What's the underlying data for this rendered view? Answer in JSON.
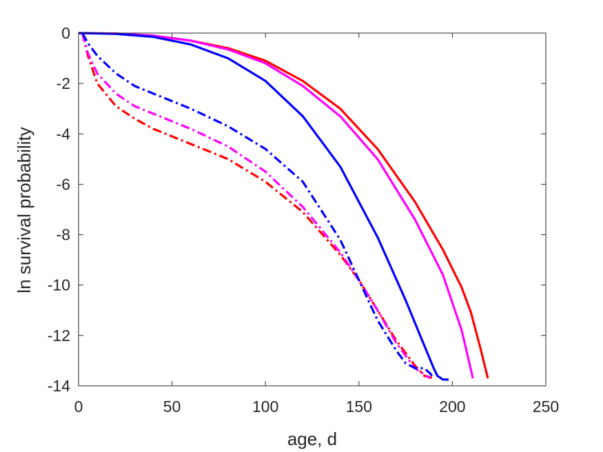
{
  "chart_data": {
    "type": "line",
    "title": "",
    "xlabel": "age, d",
    "ylabel": "ln survival probability",
    "xlim": [
      0,
      250
    ],
    "ylim": [
      -14,
      0
    ],
    "xticks": [
      0,
      50,
      100,
      150,
      200,
      250
    ],
    "yticks": [
      0,
      -2,
      -4,
      -6,
      -8,
      -10,
      -12,
      -14
    ],
    "grid": false,
    "legend": "none",
    "series": [
      {
        "color": "#ff0000",
        "style": "solid",
        "x": [
          0,
          20,
          40,
          60,
          80,
          100,
          120,
          140,
          160,
          180,
          195,
          205,
          210,
          215,
          219
        ],
        "y": [
          0,
          -0.02,
          -0.1,
          -0.3,
          -0.6,
          -1.1,
          -1.9,
          -3.0,
          -4.6,
          -6.7,
          -8.6,
          -10.1,
          -11.1,
          -12.5,
          -13.7
        ]
      },
      {
        "color": "#ff00ff",
        "style": "solid",
        "x": [
          0,
          20,
          40,
          60,
          80,
          100,
          120,
          140,
          160,
          180,
          195,
          205,
          211
        ],
        "y": [
          0,
          -0.02,
          -0.1,
          -0.3,
          -0.65,
          -1.2,
          -2.1,
          -3.3,
          -5.0,
          -7.4,
          -9.6,
          -11.8,
          -13.7
        ]
      },
      {
        "color": "#0000ff",
        "style": "solid",
        "x": [
          0,
          20,
          40,
          60,
          80,
          100,
          120,
          140,
          160,
          175,
          185,
          190,
          192,
          195,
          198
        ],
        "y": [
          0,
          -0.03,
          -0.15,
          -0.45,
          -1.0,
          -1.9,
          -3.3,
          -5.3,
          -8.1,
          -10.6,
          -12.4,
          -13.3,
          -13.6,
          -13.75,
          -13.75
        ]
      },
      {
        "color": "#ff0000",
        "style": "dashdot",
        "x": [
          2,
          5,
          10,
          20,
          30,
          40,
          60,
          80,
          100,
          120,
          140,
          150,
          160,
          170,
          180,
          185,
          190
        ],
        "y": [
          0,
          -0.9,
          -2.0,
          -2.9,
          -3.4,
          -3.8,
          -4.4,
          -5.0,
          -5.9,
          -7.1,
          -8.8,
          -9.8,
          -11.0,
          -12.2,
          -13.2,
          -13.6,
          -13.7
        ]
      },
      {
        "color": "#ff00ff",
        "style": "dashdot",
        "x": [
          2,
          5,
          10,
          20,
          30,
          40,
          60,
          80,
          100,
          120,
          140,
          150,
          160,
          170,
          180,
          188
        ],
        "y": [
          0,
          -0.8,
          -1.6,
          -2.4,
          -2.9,
          -3.2,
          -3.8,
          -4.5,
          -5.5,
          -6.9,
          -8.7,
          -9.8,
          -11.0,
          -12.3,
          -13.3,
          -13.7
        ]
      },
      {
        "color": "#0000ff",
        "style": "dashdot",
        "x": [
          2,
          5,
          10,
          20,
          30,
          40,
          60,
          80,
          100,
          120,
          140,
          150,
          160,
          170,
          175,
          180,
          185,
          188,
          190
        ],
        "y": [
          0,
          -0.4,
          -0.9,
          -1.6,
          -2.1,
          -2.4,
          -3.0,
          -3.7,
          -4.6,
          -5.9,
          -8.2,
          -9.8,
          -11.4,
          -12.6,
          -13.1,
          -13.3,
          -13.3,
          -13.5,
          -13.7
        ]
      }
    ]
  }
}
